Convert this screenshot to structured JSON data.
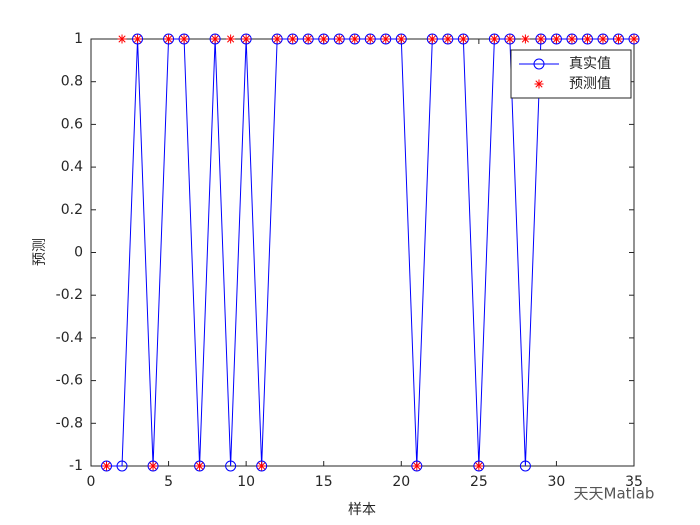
{
  "chart_data": {
    "type": "line",
    "xlabel": "样本",
    "ylabel": "预测",
    "x": [
      1,
      2,
      3,
      4,
      5,
      6,
      7,
      8,
      9,
      10,
      11,
      12,
      13,
      14,
      15,
      16,
      17,
      18,
      19,
      20,
      21,
      22,
      23,
      24,
      25,
      26,
      27,
      28,
      29,
      30,
      31,
      32,
      33,
      34,
      35
    ],
    "series": [
      {
        "name": "真实值",
        "color": "#0000ff",
        "marker": "circle",
        "line": true,
        "values": [
          -1,
          -1,
          1,
          -1,
          1,
          1,
          -1,
          1,
          -1,
          1,
          -1,
          1,
          1,
          1,
          1,
          1,
          1,
          1,
          1,
          1,
          -1,
          1,
          1,
          1,
          -1,
          1,
          1,
          -1,
          1,
          1,
          1,
          1,
          1,
          1,
          1
        ]
      },
      {
        "name": "预测值",
        "color": "#ff0000",
        "marker": "star",
        "line": false,
        "values": [
          -1,
          1,
          1,
          -1,
          1,
          1,
          -1,
          1,
          1,
          1,
          -1,
          1,
          1,
          1,
          1,
          1,
          1,
          1,
          1,
          1,
          -1,
          1,
          1,
          1,
          -1,
          1,
          1,
          1,
          1,
          1,
          1,
          1,
          1,
          1,
          1
        ]
      }
    ],
    "xlim": [
      0,
      35
    ],
    "xticks": [
      0,
      5,
      10,
      15,
      20,
      25,
      30,
      35
    ],
    "ylim": [
      -1,
      1
    ],
    "yticks": [
      -1,
      -0.8,
      -0.6,
      -0.4,
      -0.2,
      0,
      0.2,
      0.4,
      0.6,
      0.8,
      1
    ],
    "legend": "northeast",
    "watermark": "天天Matlab"
  }
}
